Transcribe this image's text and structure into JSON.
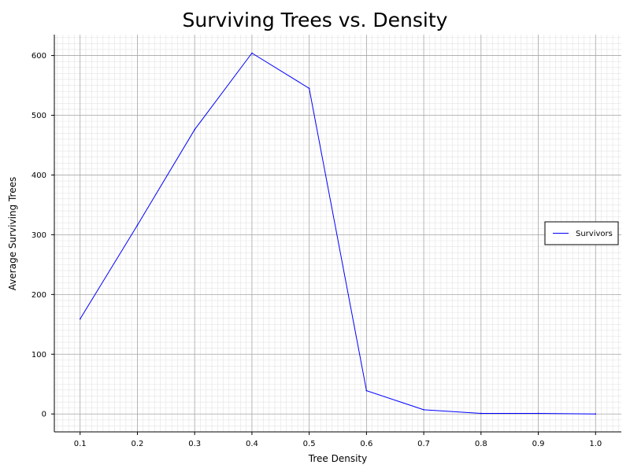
{
  "chart_data": {
    "type": "line",
    "title": "Surviving Trees vs. Density",
    "xlabel": "Tree Density",
    "ylabel": "Average Surviving Trees",
    "xlim": [
      0.055,
      1.045
    ],
    "ylim": [
      -30,
      635
    ],
    "x_ticks": [
      0.1,
      0.2,
      0.3,
      0.4,
      0.5,
      0.6,
      0.7,
      0.8,
      0.9,
      1.0
    ],
    "x_tick_labels": [
      "0.1",
      "0.2",
      "0.3",
      "0.4",
      "0.5",
      "0.6",
      "0.7",
      "0.8",
      "0.9",
      "1.0"
    ],
    "y_ticks": [
      0,
      100,
      200,
      300,
      400,
      500,
      600
    ],
    "y_tick_labels": [
      "0",
      "100",
      "200",
      "300",
      "400",
      "500",
      "600"
    ],
    "grid": true,
    "legend_position": "right",
    "series": [
      {
        "name": "Survivors",
        "color": "#0000ff",
        "x": [
          0.1,
          0.2,
          0.3,
          0.4,
          0.5,
          0.6,
          0.7,
          0.8,
          0.9,
          1.0
        ],
        "y": [
          159,
          316,
          476,
          604,
          545,
          39,
          7,
          1,
          1,
          0
        ]
      }
    ]
  }
}
